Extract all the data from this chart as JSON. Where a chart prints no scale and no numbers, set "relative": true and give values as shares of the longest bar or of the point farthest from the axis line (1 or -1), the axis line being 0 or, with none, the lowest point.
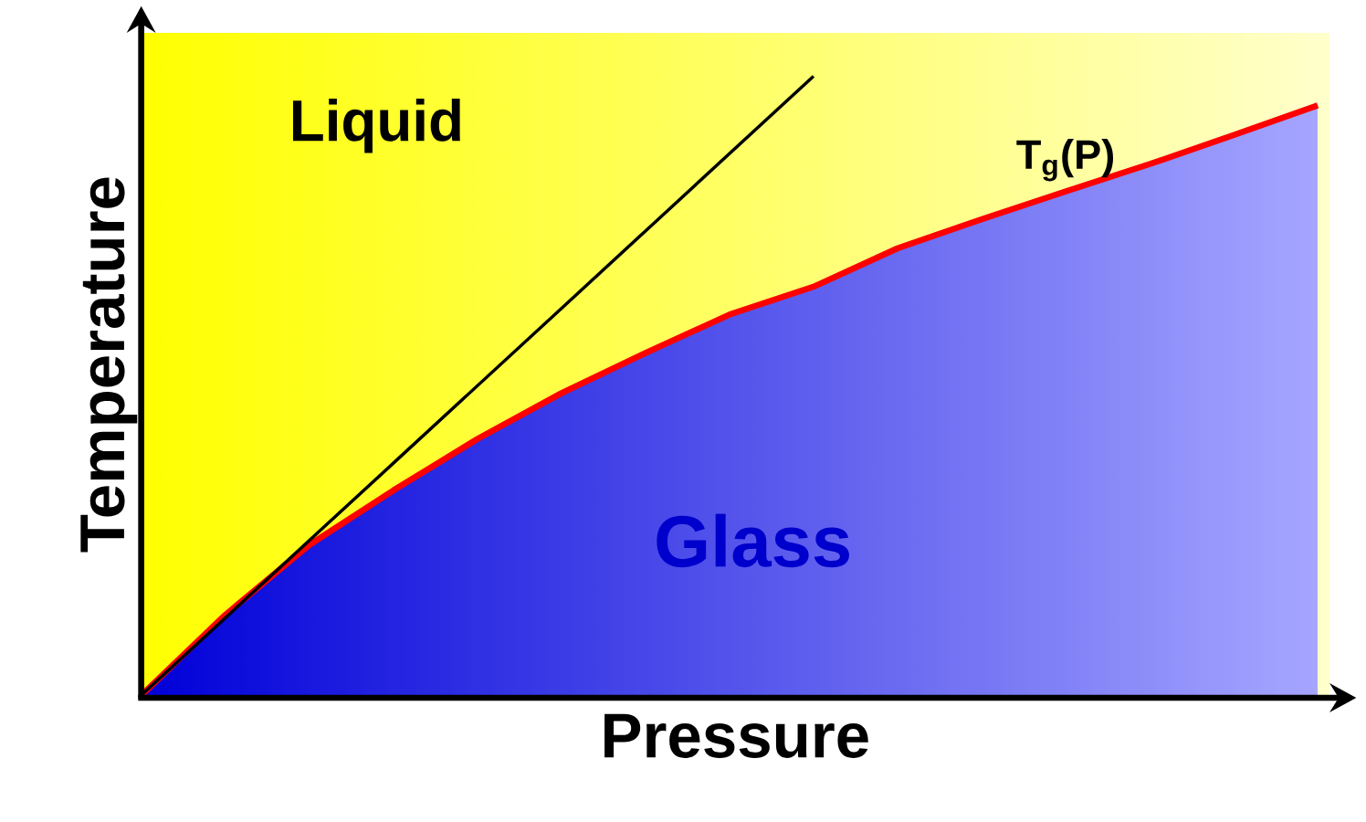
{
  "chart_data": {
    "type": "line",
    "relative": true,
    "xlabel": "Pressure",
    "ylabel": "Temperature",
    "tick_labels": false,
    "annotations": [
      "Liquid",
      "Glass"
    ],
    "categories": [
      null,
      null,
      null,
      null,
      null,
      null,
      null,
      null,
      null,
      null,
      null,
      null,
      null,
      null,
      null
    ],
    "series": [
      {
        "name": "T$_{g}$(P)",
        "color": "#ff0000",
        "values": [
          0,
          0.13,
          0.243,
          0.331,
          0.414,
          0.488,
          0.553,
          0.615,
          0.66,
          0.722,
          0.769,
          0.814,
          0.858,
          0.905,
          0.953
        ]
      },
      {
        "color": "#000000",
        "values": [
          0,
          0.125,
          0.25,
          0.375,
          0.5,
          0.625,
          0.75,
          0.875,
          1,
          null,
          null,
          null,
          null,
          null,
          null
        ]
      }
    ]
  }
}
